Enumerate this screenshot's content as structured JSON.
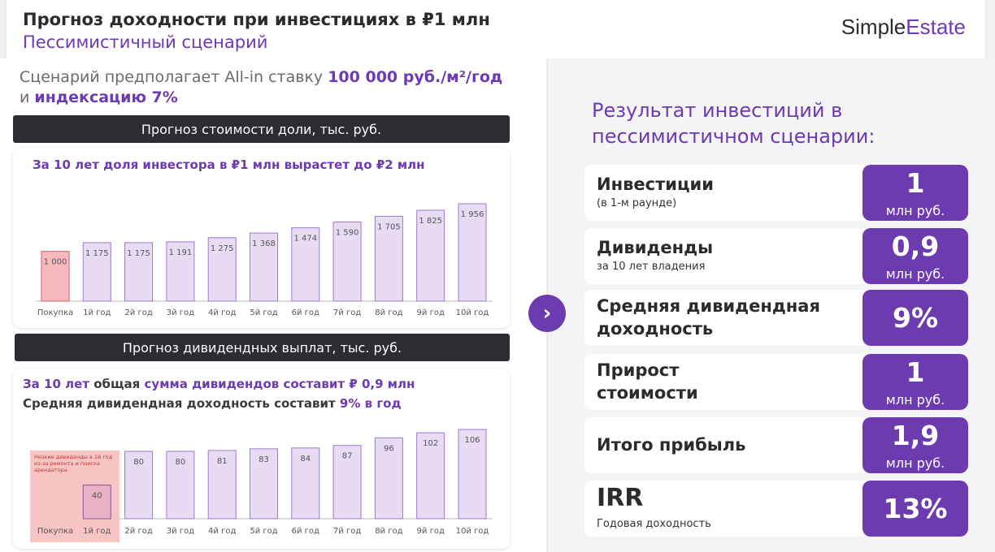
{
  "header": {
    "title": "Прогноз доходности при инвестициях в ₽1 млн",
    "subtitle": "Пессимистичный сценарий",
    "logo_a": "Simple",
    "logo_b": "Estate"
  },
  "intro": {
    "p1": "Сценарий предполагает All-in ставку ",
    "rate": "100 000 руб./м²/год",
    "p2": "и ",
    "index": "индексацию 7%"
  },
  "value_section": {
    "header": "Прогноз стоимости доли, тыс. руб.",
    "title": "За 10 лет доля инвестора в ₽1 млн вырастет до ₽2 млн"
  },
  "dividend_section": {
    "header": "Прогноз дивидендных выплат, тыс. руб.",
    "line1_a": "За 10 лет ",
    "line1_b": "общая ",
    "line1_c": "сумма дивидендов составит ₽ 0,9 млн",
    "line2_a": "Средняя дивидендная доходность составит ",
    "line2_b": "9% в год",
    "note": "Низкие дивиденды в 1й год из-за ремонта и поиска арендатора"
  },
  "chart_data": [
    {
      "type": "bar",
      "categories": [
        "Покупка",
        "1й год",
        "2й год",
        "3й год",
        "4й год",
        "5й год",
        "6й год",
        "7й год",
        "8й год",
        "9й год",
        "10й год"
      ],
      "values": [
        1000,
        1175,
        1175,
        1191,
        1275,
        1368,
        1474,
        1590,
        1705,
        1825,
        1956
      ],
      "labels": [
        "1 000",
        "1 175",
        "1 175",
        "1 191",
        "1 275",
        "1 368",
        "1 474",
        "1 590",
        "1 705",
        "1 825",
        "1 956"
      ],
      "title": "За 10 лет доля инвестора в ₽1 млн вырастет до ₽2 млн",
      "colors": {
        "first": "#f7b8be",
        "rest": "#e7dcf4",
        "accent": "#6c3bb0"
      }
    },
    {
      "type": "bar",
      "categories": [
        "Покупка",
        "1й год",
        "2й год",
        "3й год",
        "4й год",
        "5й год",
        "6й год",
        "7й год",
        "8й год",
        "9й год",
        "10й год"
      ],
      "values": [
        null,
        40,
        80,
        80,
        81,
        83,
        84,
        87,
        96,
        102,
        106
      ],
      "labels": [
        "",
        "40",
        "80",
        "80",
        "81",
        "83",
        "84",
        "87",
        "96",
        "102",
        "106"
      ],
      "colors": {
        "low": "#eab0c6",
        "rest": "#e7dcf4",
        "note_bg": "#f9c4c4"
      }
    }
  ],
  "result": {
    "title": "Результат инвестиций в пессимистичном сценарии:",
    "rows": [
      {
        "label": "Инвестиции",
        "sub": "(в 1-м раунде)",
        "value": "1",
        "unit": "млн руб."
      },
      {
        "label": "Дивиденды",
        "sub": "за 10 лет владения",
        "value": "0,9",
        "unit": "млн руб."
      },
      {
        "label1": "Средняя дивидендная",
        "label2": "доходность",
        "value": "9%"
      },
      {
        "label1": "Прирост",
        "label2": "стоимости",
        "value": "1",
        "unit": "млн руб."
      },
      {
        "label": "Итого прибыль",
        "value": "1,9",
        "unit": "млн руб."
      },
      {
        "label": "IRR",
        "sub": "Годовая доходность",
        "value": "13%"
      }
    ]
  },
  "arrow_icon": "chevron-right-icon"
}
